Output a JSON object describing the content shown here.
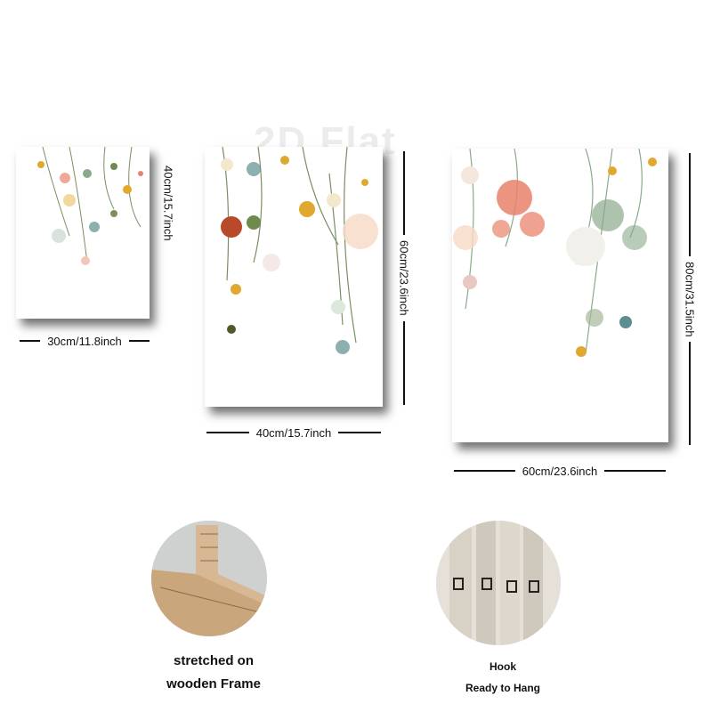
{
  "watermark": "2D Flat",
  "panels": [
    {
      "width_label": "30cm/11.8inch",
      "height_label": "40cm/15.7inch"
    },
    {
      "width_label": "40cm/15.7inch",
      "height_label": "60cm/23.6inch"
    },
    {
      "width_label": "60cm/23.6inch",
      "height_label": "80cm/31.5inch"
    }
  ],
  "details": {
    "frame": {
      "line1": "stretched on",
      "line2": "wooden Frame"
    },
    "hook": {
      "line1": "Hook",
      "line2": "Ready to Hang"
    }
  },
  "colors": {
    "shadow": "#555555",
    "coral": "#e8836a",
    "sage": "#8aa98a",
    "mustard": "#e0a82e",
    "wood": "#d8b894"
  }
}
